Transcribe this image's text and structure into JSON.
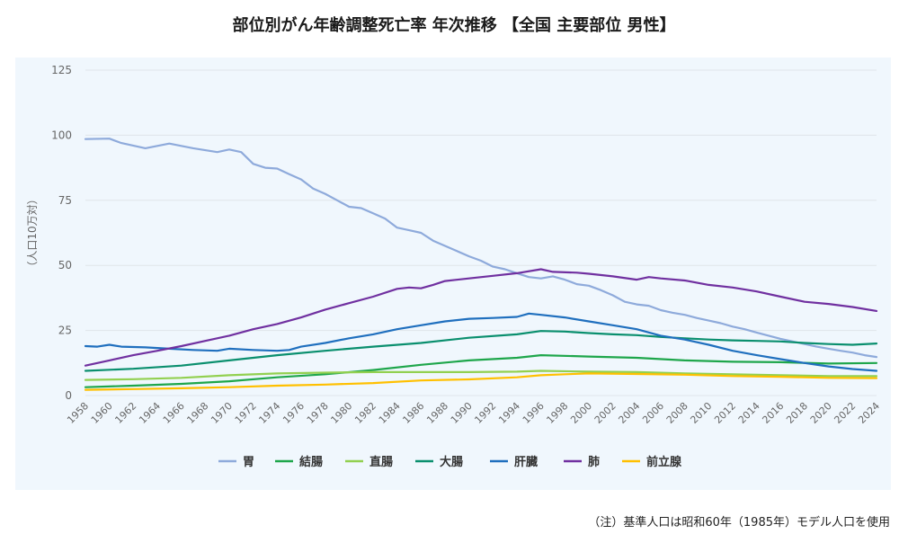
{
  "title": "部位別がん年齢調整死亡率 年次推移 【全国 主要部位 男性】",
  "footnote": "（注）基準人口は昭和60年（1985年）モデル人口を使用",
  "colors": {
    "panel_bg": "#f0f7fd",
    "grid": "#dfe5ea",
    "axis_text": "#666666"
  },
  "chart_data": {
    "type": "line",
    "title": "部位別がん年齢調整死亡率 年次推移 【全国 主要部位 男性】",
    "ylabel": "（人口10万対）",
    "xlabel": "",
    "ylim": [
      0,
      125
    ],
    "yticks": [
      0,
      25,
      50,
      75,
      100,
      125
    ],
    "x_start": 1958,
    "x_end": 2024,
    "xtick_labels": [
      "1958",
      "1960",
      "1962",
      "1964",
      "1966",
      "1968",
      "1970",
      "1972",
      "1974",
      "1976",
      "1978",
      "1980",
      "1982",
      "1984",
      "1986",
      "1988",
      "1990",
      "1992",
      "1994",
      "1996",
      "1998",
      "2000",
      "2002",
      "2004",
      "2006",
      "2008",
      "2010",
      "2012",
      "2014",
      "2016",
      "2018",
      "2020",
      "2022",
      "2024"
    ],
    "grid": true,
    "legend_position": "bottom",
    "series": [
      {
        "name": "胃",
        "color": "#8eaadb",
        "points": [
          [
            1958,
            98.5
          ],
          [
            1960,
            98.7
          ],
          [
            1961,
            97
          ],
          [
            1963,
            95
          ],
          [
            1965,
            96.8
          ],
          [
            1967,
            95
          ],
          [
            1969,
            93.5
          ],
          [
            1970,
            94.5
          ],
          [
            1971,
            93.5
          ],
          [
            1972,
            89
          ],
          [
            1973,
            87.5
          ],
          [
            1974,
            87.2
          ],
          [
            1975,
            85
          ],
          [
            1976,
            83
          ],
          [
            1977,
            79.5
          ],
          [
            1978,
            77.5
          ],
          [
            1979,
            75
          ],
          [
            1980,
            72.5
          ],
          [
            1981,
            72
          ],
          [
            1982,
            70
          ],
          [
            1983,
            68
          ],
          [
            1984,
            64.5
          ],
          [
            1985,
            63.5
          ],
          [
            1986,
            62.5
          ],
          [
            1987,
            59.5
          ],
          [
            1988,
            57.5
          ],
          [
            1989,
            55.5
          ],
          [
            1990,
            53.5
          ],
          [
            1991,
            51.8
          ],
          [
            1992,
            49.5
          ],
          [
            1993,
            48.5
          ],
          [
            1994,
            47
          ],
          [
            1995,
            45.5
          ],
          [
            1996,
            45
          ],
          [
            1997,
            45.8
          ],
          [
            1998,
            44.5
          ],
          [
            1999,
            42.8
          ],
          [
            2000,
            42.2
          ],
          [
            2001,
            40.5
          ],
          [
            2002,
            38.5
          ],
          [
            2003,
            36
          ],
          [
            2004,
            35
          ],
          [
            2005,
            34.5
          ],
          [
            2006,
            32.8
          ],
          [
            2007,
            31.8
          ],
          [
            2008,
            31
          ],
          [
            2009,
            29.8
          ],
          [
            2010,
            28.8
          ],
          [
            2011,
            27.8
          ],
          [
            2012,
            26.5
          ],
          [
            2013,
            25.5
          ],
          [
            2014,
            24.2
          ],
          [
            2015,
            23
          ],
          [
            2016,
            21.8
          ],
          [
            2017,
            20.8
          ],
          [
            2018,
            19.8
          ],
          [
            2019,
            18.8
          ],
          [
            2020,
            18
          ],
          [
            2021,
            17.2
          ],
          [
            2022,
            16.5
          ],
          [
            2023,
            15.5
          ],
          [
            2024,
            14.8
          ]
        ]
      },
      {
        "name": "結腸",
        "color": "#1ea64b",
        "points": [
          [
            1958,
            3.2
          ],
          [
            1962,
            3.8
          ],
          [
            1966,
            4.5
          ],
          [
            1970,
            5.5
          ],
          [
            1974,
            7
          ],
          [
            1978,
            8.2
          ],
          [
            1982,
            9.8
          ],
          [
            1986,
            11.8
          ],
          [
            1990,
            13.5
          ],
          [
            1994,
            14.5
          ],
          [
            1996,
            15.5
          ],
          [
            2000,
            15
          ],
          [
            2004,
            14.5
          ],
          [
            2008,
            13.5
          ],
          [
            2012,
            13
          ],
          [
            2016,
            12.8
          ],
          [
            2020,
            12.3
          ],
          [
            2024,
            12.5
          ]
        ]
      },
      {
        "name": "直腸",
        "color": "#92d050",
        "points": [
          [
            1958,
            6
          ],
          [
            1962,
            6.3
          ],
          [
            1966,
            6.8
          ],
          [
            1970,
            7.8
          ],
          [
            1974,
            8.5
          ],
          [
            1978,
            8.8
          ],
          [
            1982,
            9
          ],
          [
            1986,
            9
          ],
          [
            1990,
            9
          ],
          [
            1994,
            9.2
          ],
          [
            1996,
            9.5
          ],
          [
            2000,
            9.2
          ],
          [
            2004,
            9
          ],
          [
            2008,
            8.5
          ],
          [
            2012,
            8.2
          ],
          [
            2016,
            7.8
          ],
          [
            2020,
            7.5
          ],
          [
            2024,
            7.5
          ]
        ]
      },
      {
        "name": "大腸",
        "color": "#0a8f6e",
        "points": [
          [
            1958,
            9.5
          ],
          [
            1962,
            10.3
          ],
          [
            1966,
            11.5
          ],
          [
            1970,
            13.5
          ],
          [
            1974,
            15.5
          ],
          [
            1978,
            17.2
          ],
          [
            1982,
            18.8
          ],
          [
            1986,
            20.2
          ],
          [
            1990,
            22.2
          ],
          [
            1994,
            23.5
          ],
          [
            1996,
            24.8
          ],
          [
            1998,
            24.6
          ],
          [
            2000,
            24
          ],
          [
            2002,
            23.5
          ],
          [
            2004,
            23.2
          ],
          [
            2006,
            22.5
          ],
          [
            2008,
            22
          ],
          [
            2010,
            21.5
          ],
          [
            2012,
            21.2
          ],
          [
            2014,
            21
          ],
          [
            2016,
            20.8
          ],
          [
            2018,
            20.2
          ],
          [
            2020,
            19.8
          ],
          [
            2022,
            19.5
          ],
          [
            2024,
            20
          ]
        ]
      },
      {
        "name": "肝臓",
        "color": "#1f6fbe",
        "points": [
          [
            1958,
            19
          ],
          [
            1959,
            18.8
          ],
          [
            1960,
            19.5
          ],
          [
            1961,
            18.8
          ],
          [
            1963,
            18.5
          ],
          [
            1965,
            18
          ],
          [
            1967,
            17.5
          ],
          [
            1969,
            17.2
          ],
          [
            1970,
            18
          ],
          [
            1972,
            17.5
          ],
          [
            1974,
            17.2
          ],
          [
            1975,
            17.5
          ],
          [
            1976,
            18.8
          ],
          [
            1978,
            20.2
          ],
          [
            1980,
            22
          ],
          [
            1982,
            23.5
          ],
          [
            1984,
            25.5
          ],
          [
            1986,
            27
          ],
          [
            1988,
            28.5
          ],
          [
            1990,
            29.5
          ],
          [
            1992,
            29.8
          ],
          [
            1994,
            30.2
          ],
          [
            1995,
            31.5
          ],
          [
            1996,
            31
          ],
          [
            1998,
            30
          ],
          [
            2000,
            28.5
          ],
          [
            2002,
            27
          ],
          [
            2004,
            25.5
          ],
          [
            2006,
            23
          ],
          [
            2008,
            21.5
          ],
          [
            2010,
            19.5
          ],
          [
            2012,
            17.2
          ],
          [
            2014,
            15.5
          ],
          [
            2016,
            14
          ],
          [
            2018,
            12.5
          ],
          [
            2020,
            11.2
          ],
          [
            2022,
            10.2
          ],
          [
            2024,
            9.5
          ]
        ]
      },
      {
        "name": "肺",
        "color": "#7030a0",
        "points": [
          [
            1958,
            11.5
          ],
          [
            1960,
            13.5
          ],
          [
            1962,
            15.5
          ],
          [
            1964,
            17.2
          ],
          [
            1966,
            19
          ],
          [
            1968,
            21
          ],
          [
            1970,
            23
          ],
          [
            1972,
            25.5
          ],
          [
            1974,
            27.5
          ],
          [
            1976,
            30
          ],
          [
            1978,
            33
          ],
          [
            1980,
            35.5
          ],
          [
            1982,
            38
          ],
          [
            1984,
            41
          ],
          [
            1985,
            41.5
          ],
          [
            1986,
            41.2
          ],
          [
            1987,
            42.5
          ],
          [
            1988,
            44
          ],
          [
            1990,
            45
          ],
          [
            1992,
            46
          ],
          [
            1994,
            47
          ],
          [
            1996,
            48.5
          ],
          [
            1997,
            47.5
          ],
          [
            1999,
            47.2
          ],
          [
            2000,
            46.8
          ],
          [
            2002,
            45.8
          ],
          [
            2004,
            44.5
          ],
          [
            2005,
            45.5
          ],
          [
            2006,
            45
          ],
          [
            2008,
            44.2
          ],
          [
            2010,
            42.5
          ],
          [
            2012,
            41.5
          ],
          [
            2014,
            40
          ],
          [
            2016,
            38
          ],
          [
            2018,
            36
          ],
          [
            2020,
            35.2
          ],
          [
            2022,
            34
          ],
          [
            2024,
            32.5
          ]
        ]
      },
      {
        "name": "前立腺",
        "color": "#ffc000",
        "points": [
          [
            1958,
            2.2
          ],
          [
            1962,
            2.5
          ],
          [
            1966,
            2.8
          ],
          [
            1970,
            3.2
          ],
          [
            1974,
            3.8
          ],
          [
            1978,
            4.2
          ],
          [
            1982,
            4.8
          ],
          [
            1986,
            5.8
          ],
          [
            1990,
            6.2
          ],
          [
            1994,
            7
          ],
          [
            1996,
            7.8
          ],
          [
            1998,
            8.2
          ],
          [
            2000,
            8.5
          ],
          [
            2004,
            8.3
          ],
          [
            2008,
            8
          ],
          [
            2012,
            7.5
          ],
          [
            2016,
            7.2
          ],
          [
            2020,
            6.8
          ],
          [
            2024,
            6.7
          ]
        ]
      }
    ]
  }
}
